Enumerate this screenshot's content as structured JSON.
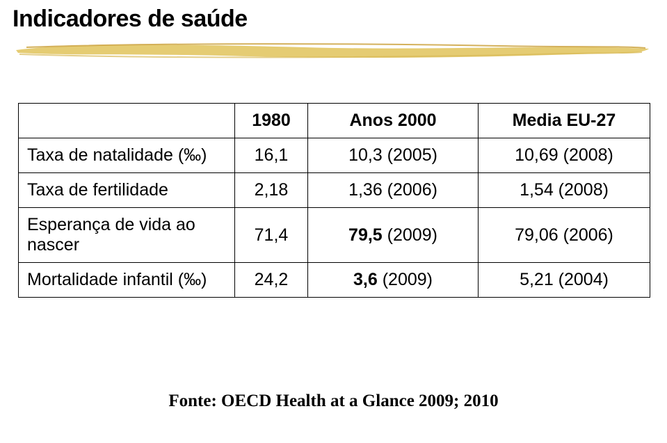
{
  "title": "Indicadores de saúde",
  "rule": {
    "stroke": "#e1c35a",
    "fill": "#e1c35a"
  },
  "table": {
    "columns": [
      "",
      "1980",
      "Anos 2000",
      "Media EU-27"
    ],
    "rows": [
      {
        "label": "Taxa de natalidade (‰)",
        "c1": "16,1",
        "c2": "10,3 (2005)",
        "c3": "10,69 (2008)",
        "bold_c2": false
      },
      {
        "label": "Taxa de fertilidade",
        "c1": "2,18",
        "c2": "1,36 (2006)",
        "c3": "1,54 (2008)",
        "bold_c2": false
      },
      {
        "label": "Esperança de vida ao nascer",
        "c1": "71,4",
        "c2": "79,5 (2009)",
        "c3": "79,06 (2006)",
        "bold_c2": true
      },
      {
        "label": "Mortalidade infantil (‰)",
        "c1": "24,2",
        "c2": "3,6 (2009)",
        "c3": "5,21 (2004)",
        "bold_c2": true
      }
    ]
  },
  "source": "Fonte: OECD Health at a Glance 2009; 2010"
}
